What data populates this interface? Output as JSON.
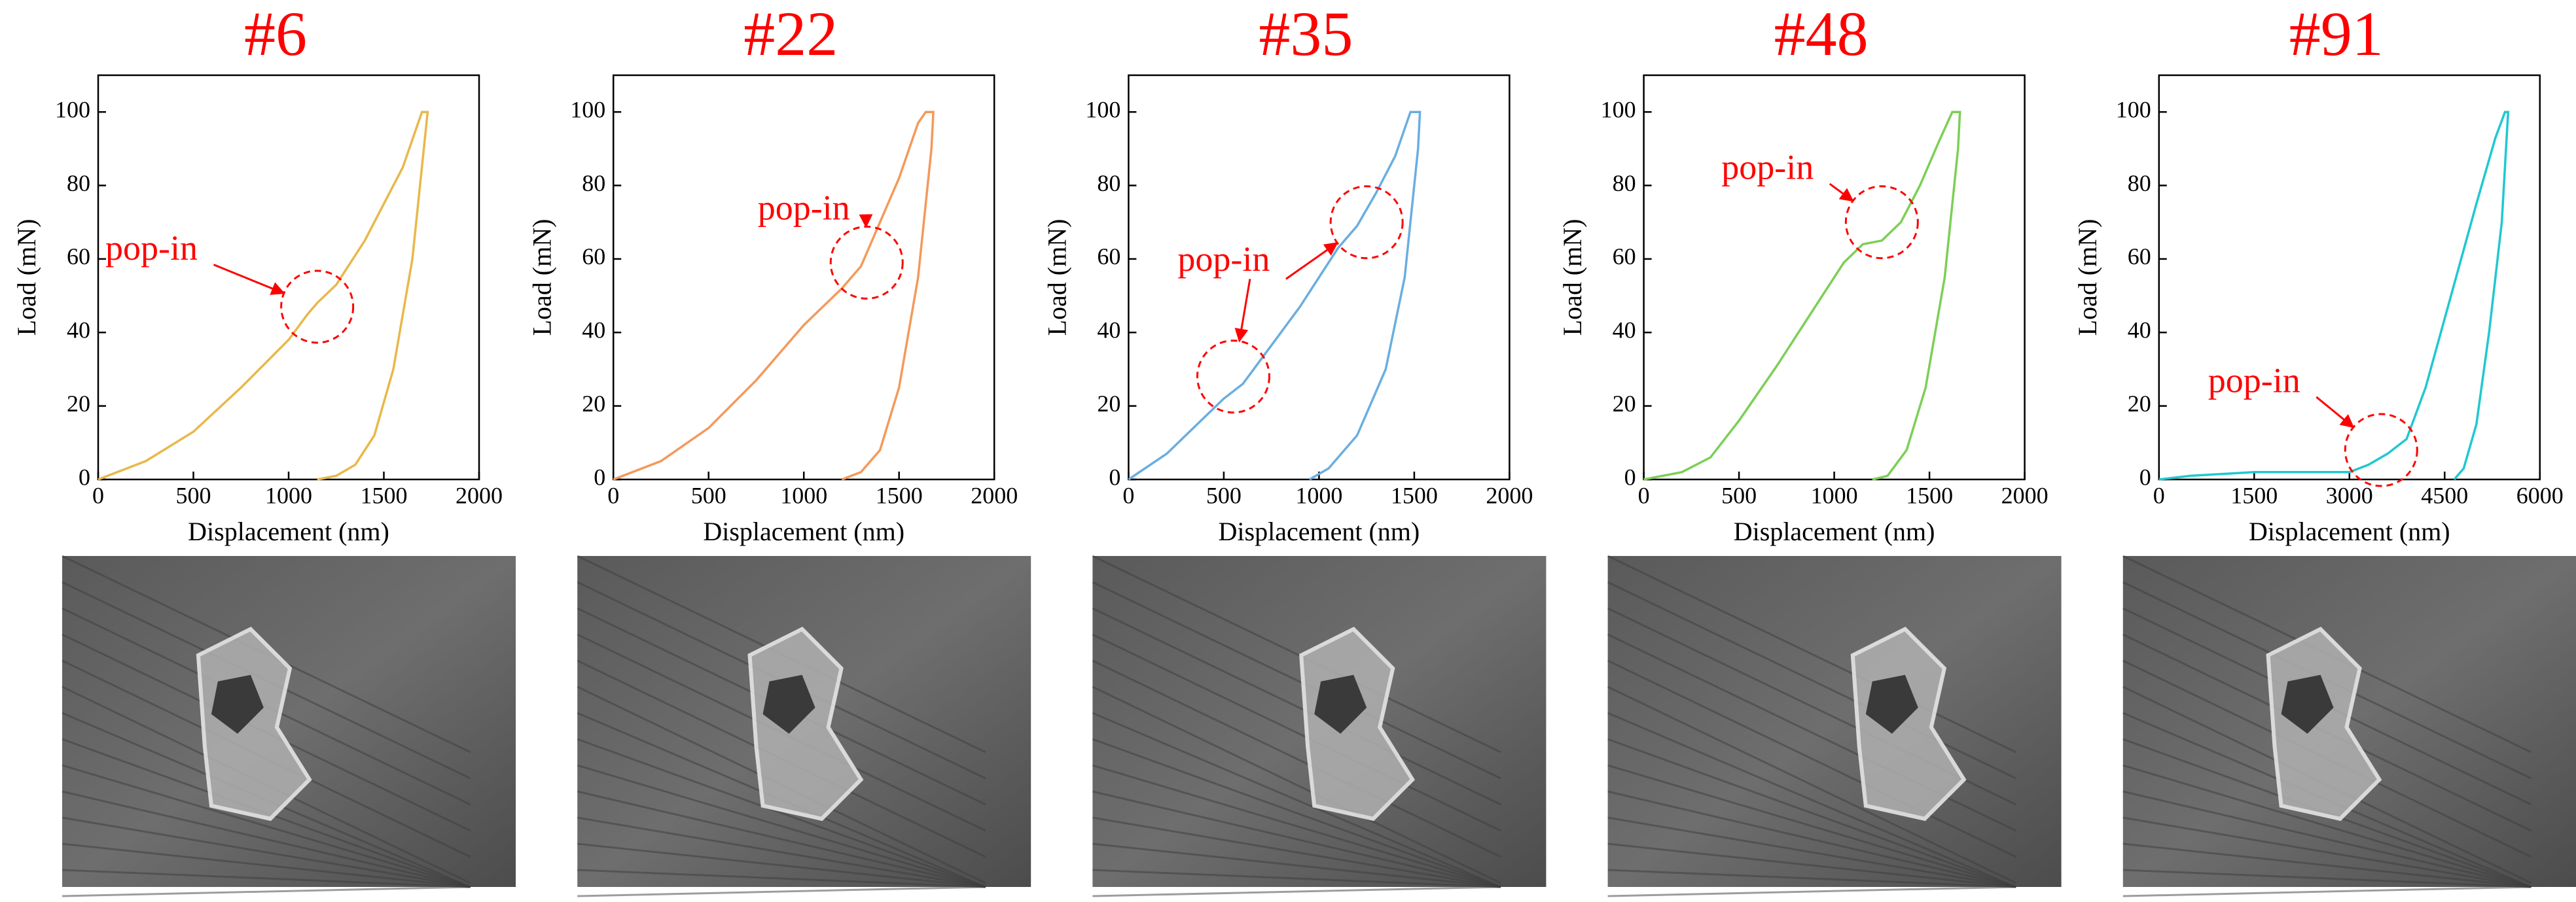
{
  "chart_data": [
    {
      "type": "line",
      "title": "#6",
      "xlabel": "Displacement (nm)",
      "ylabel": "Load (mN)",
      "annotation": "pop-in",
      "color": "#e8b84a",
      "x": [
        0,
        250,
        500,
        750,
        1000,
        1100,
        1150,
        1250,
        1400,
        1500,
        1600,
        1680,
        1700,
        1730,
        1720,
        1650,
        1550,
        1450,
        1350,
        1250,
        1150
      ],
      "values": [
        0,
        5,
        13,
        25,
        38,
        45,
        48,
        53,
        65,
        75,
        85,
        97,
        100,
        100,
        95,
        60,
        30,
        12,
        4,
        1,
        0
      ],
      "xlim": [
        0,
        2000
      ],
      "xticks": [
        0,
        500,
        1000,
        1500,
        2000
      ],
      "ylim": [
        0,
        110
      ],
      "yticks": [
        0,
        20,
        40,
        60,
        80,
        100
      ]
    },
    {
      "type": "line",
      "title": "#22",
      "xlabel": "Displacement (nm)",
      "ylabel": "Load (mN)",
      "annotation": "pop-in",
      "color": "#f4995a",
      "x": [
        0,
        250,
        500,
        750,
        1000,
        1200,
        1300,
        1400,
        1500,
        1600,
        1640,
        1680,
        1670,
        1600,
        1500,
        1400,
        1300,
        1200
      ],
      "values": [
        0,
        5,
        14,
        27,
        42,
        52,
        58,
        70,
        82,
        97,
        100,
        100,
        90,
        55,
        25,
        8,
        2,
        0
      ],
      "xlim": [
        0,
        2000
      ],
      "xticks": [
        0,
        500,
        1000,
        1500,
        2000
      ],
      "ylim": [
        0,
        110
      ],
      "yticks": [
        0,
        20,
        40,
        60,
        80,
        100
      ]
    },
    {
      "type": "line",
      "title": "#35",
      "xlabel": "Displacement (nm)",
      "ylabel": "Load (mN)",
      "annotation": "pop-in",
      "color": "#6aaee0",
      "x": [
        0,
        200,
        400,
        500,
        600,
        700,
        800,
        900,
        1000,
        1100,
        1200,
        1300,
        1400,
        1480,
        1530,
        1520,
        1450,
        1350,
        1200,
        1050,
        950
      ],
      "values": [
        0,
        7,
        17,
        22,
        26,
        33,
        40,
        47,
        55,
        63,
        69,
        78,
        88,
        100,
        100,
        90,
        55,
        30,
        12,
        3,
        0
      ],
      "xlim": [
        0,
        2000
      ],
      "xticks": [
        0,
        500,
        1000,
        1500,
        2000
      ],
      "ylim": [
        0,
        110
      ],
      "yticks": [
        0,
        20,
        40,
        60,
        80,
        100
      ]
    },
    {
      "type": "line",
      "title": "#48",
      "xlabel": "Displacement (nm)",
      "ylabel": "Load (mN)",
      "annotation": "pop-in",
      "color": "#7ccf55",
      "x": [
        0,
        200,
        350,
        500,
        700,
        900,
        1050,
        1150,
        1250,
        1350,
        1450,
        1550,
        1620,
        1660,
        1650,
        1580,
        1480,
        1380,
        1280,
        1200
      ],
      "values": [
        0,
        2,
        6,
        16,
        31,
        47,
        59,
        64,
        65,
        70,
        80,
        92,
        100,
        100,
        90,
        55,
        25,
        8,
        1,
        0
      ],
      "xlim": [
        0,
        2000
      ],
      "xticks": [
        0,
        500,
        1000,
        1500,
        2000
      ],
      "ylim": [
        0,
        110
      ],
      "yticks": [
        0,
        20,
        40,
        60,
        80,
        100
      ]
    },
    {
      "type": "line",
      "title": "#91",
      "xlabel": "Displacement (nm)",
      "ylabel": "Load (mN)",
      "annotation": "pop-in",
      "color": "#20c8d0",
      "x": [
        0,
        500,
        1500,
        3000,
        3300,
        3600,
        3900,
        4200,
        4600,
        5000,
        5300,
        5450,
        5500,
        5400,
        5200,
        5000,
        4800,
        4650
      ],
      "values": [
        0,
        1,
        2,
        2,
        4,
        7,
        11,
        25,
        50,
        75,
        93,
        100,
        100,
        70,
        40,
        15,
        3,
        0
      ],
      "xlim": [
        0,
        6000
      ],
      "xticks": [
        0,
        1500,
        3000,
        4500,
        6000
      ],
      "ylim": [
        0,
        110
      ],
      "yticks": [
        0,
        20,
        40,
        60,
        80,
        100
      ]
    }
  ]
}
